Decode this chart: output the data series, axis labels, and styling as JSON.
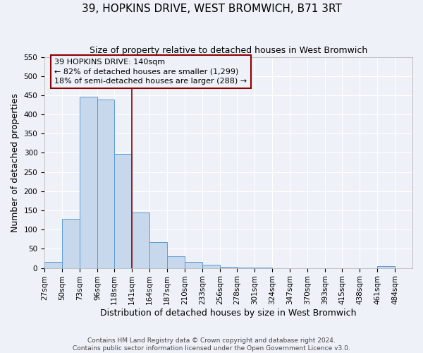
{
  "title": "39, HOPKINS DRIVE, WEST BROMWICH, B71 3RT",
  "subtitle": "Size of property relative to detached houses in West Bromwich",
  "xlabel": "Distribution of detached houses by size in West Bromwich",
  "ylabel": "Number of detached properties",
  "bin_labels": [
    "27sqm",
    "50sqm",
    "73sqm",
    "96sqm",
    "118sqm",
    "141sqm",
    "164sqm",
    "187sqm",
    "210sqm",
    "233sqm",
    "256sqm",
    "278sqm",
    "301sqm",
    "324sqm",
    "347sqm",
    "370sqm",
    "393sqm",
    "415sqm",
    "438sqm",
    "461sqm",
    "484sqm"
  ],
  "bin_edges": [
    27,
    50,
    73,
    96,
    118,
    141,
    164,
    187,
    210,
    233,
    256,
    278,
    301,
    324,
    347,
    370,
    393,
    415,
    438,
    461,
    484,
    507
  ],
  "bar_heights": [
    15,
    128,
    447,
    438,
    298,
    145,
    68,
    30,
    15,
    8,
    3,
    1,
    1,
    0,
    0,
    0,
    0,
    0,
    0,
    5,
    0
  ],
  "bar_color": "#c8d8ec",
  "bar_edge_color": "#5b9bd5",
  "property_line_x": 141,
  "property_line_color": "#8b0000",
  "annotation_line1": "39 HOPKINS DRIVE: 140sqm",
  "annotation_line2": "← 82% of detached houses are smaller (1,299)",
  "annotation_line3": "18% of semi-detached houses are larger (288) →",
  "annotation_box_color": "#8b0000",
  "ylim": [
    0,
    550
  ],
  "yticks": [
    0,
    50,
    100,
    150,
    200,
    250,
    300,
    350,
    400,
    450,
    500,
    550
  ],
  "footer_line1": "Contains HM Land Registry data © Crown copyright and database right 2024.",
  "footer_line2": "Contains public sector information licensed under the Open Government Licence v3.0.",
  "background_color": "#eef2f8",
  "grid_color": "#ffffff",
  "title_fontsize": 11,
  "subtitle_fontsize": 9,
  "axis_label_fontsize": 9,
  "tick_fontsize": 7.5,
  "annotation_fontsize": 8,
  "footer_fontsize": 6.5
}
